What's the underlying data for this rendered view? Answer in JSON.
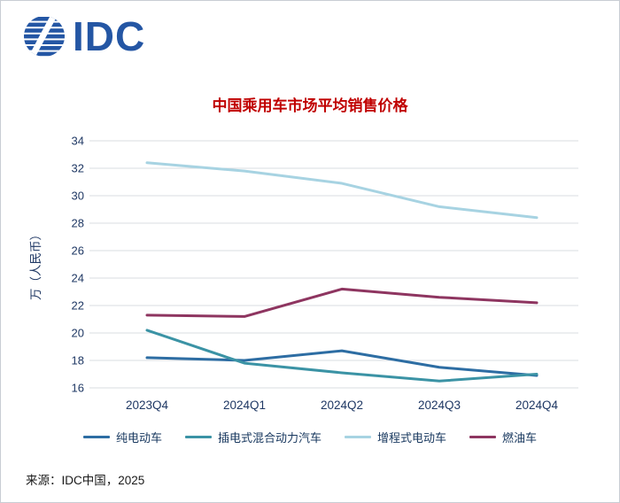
{
  "logo": {
    "text": "IDC"
  },
  "chart_data": {
    "type": "line",
    "title": "中国乘用车市场平均销售价格",
    "ylabel": "万（人民币）",
    "categories": [
      "2023Q4",
      "2024Q1",
      "2024Q2",
      "2024Q3",
      "2024Q4"
    ],
    "ylim": [
      16,
      34
    ],
    "ytick_step": 2,
    "grid": "horizontal",
    "legend_position": "bottom",
    "series": [
      {
        "name": "纯电动车",
        "color": "#2D6DA3",
        "values": [
          18.2,
          18.0,
          18.7,
          17.5,
          16.9
        ]
      },
      {
        "name": "插电式混合动力汽车",
        "color": "#3B93A5",
        "values": [
          20.2,
          17.8,
          17.1,
          16.5,
          17.0
        ]
      },
      {
        "name": "增程式电动车",
        "color": "#A7D3E2",
        "values": [
          32.4,
          31.8,
          30.9,
          29.2,
          28.4
        ]
      },
      {
        "name": "燃油车",
        "color": "#8E3560",
        "values": [
          21.3,
          21.2,
          23.2,
          22.6,
          22.2
        ]
      }
    ],
    "colors": {
      "title": "#C00000",
      "axis_text": "#1F3864",
      "gridline": "#D8DCE0",
      "logo_blue": "#2456A4"
    }
  },
  "source": "来源：IDC中国，2025"
}
